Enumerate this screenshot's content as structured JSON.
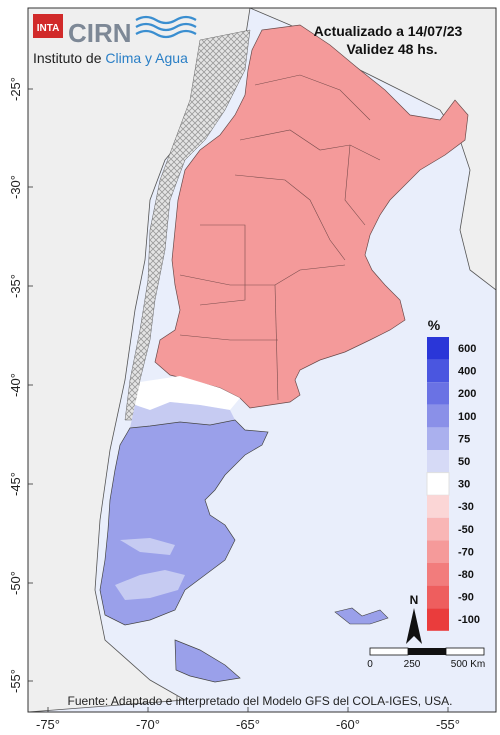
{
  "header": {
    "inta_logo": "INTA",
    "cirn_logo": "CIRN",
    "institute_prefix": "Instituto de ",
    "institute_highlight": "Clima y Agua",
    "updated": "Actualizado a 14/07/23",
    "validity": "Validez 48 hs."
  },
  "axes": {
    "lat_labels": [
      "-25°",
      "-30°",
      "-35°",
      "-40°",
      "-45°",
      "-50°",
      "-55°"
    ],
    "lon_labels": [
      "-75°",
      "-70°",
      "-65°",
      "-60°",
      "-55°"
    ]
  },
  "legend": {
    "unit": "%",
    "items": [
      {
        "label": "600",
        "color": "#2a36d8"
      },
      {
        "label": "400",
        "color": "#4a56e0"
      },
      {
        "label": "200",
        "color": "#6a72e4"
      },
      {
        "label": "100",
        "color": "#8a90e8"
      },
      {
        "label": "75",
        "color": "#aab0ee"
      },
      {
        "label": "50",
        "color": "#d6daf6"
      },
      {
        "label": "30",
        "color": "#ffffff"
      },
      {
        "label": "-30",
        "color": "#fbd6d6"
      },
      {
        "label": "-50",
        "color": "#f9b6b6"
      },
      {
        "label": "-70",
        "color": "#f59a9a"
      },
      {
        "label": "-80",
        "color": "#f27c7c"
      },
      {
        "label": "-90",
        "color": "#ee5e5e"
      },
      {
        "label": "-100",
        "color": "#ea3c3c"
      }
    ]
  },
  "scale_bar": {
    "labels": [
      "0",
      "250",
      "500 Km"
    ]
  },
  "north_arrow": {
    "label": "N"
  },
  "footer": {
    "source": "Fuente: Adaptado e interpretado del Modelo GFS del COLA-IGES, USA."
  },
  "colors": {
    "sea": "#e9eefb",
    "land": "#efefef",
    "deficit": "#f49a9a",
    "surplus": "#9aa0ea",
    "light_surplus": "#c6cbf2"
  }
}
